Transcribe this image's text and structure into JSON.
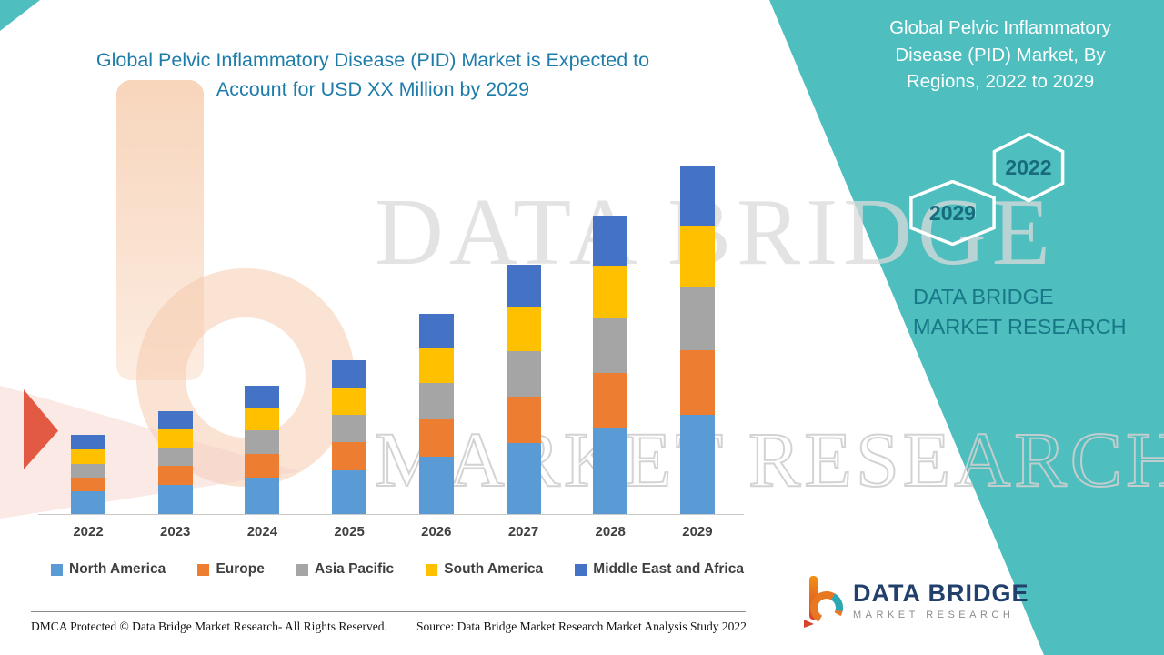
{
  "header": {
    "left_title": "Global Pelvic Inflammatory Disease (PID) Market is Expected to Account for USD XX Million by 2029"
  },
  "right_panel": {
    "title": "Global Pelvic Inflammatory Disease (PID) Market, By Regions, 2022 to 2029",
    "hexagons": [
      {
        "label": "2029"
      },
      {
        "label": "2022"
      }
    ],
    "brand": "DATA BRIDGE MARKET RESEARCH",
    "band_color": "#4EBEBF"
  },
  "watermark": {
    "line1": "DATA BRIDGE",
    "line2": "MARKET RESEARCH"
  },
  "footer": {
    "dmca": "DMCA Protected © Data Bridge Market Research- All Rights Reserved.",
    "source": "Source: Data Bridge Market Research Market Analysis Study 2022"
  },
  "logo": {
    "title": "DATA BRIDGE",
    "subtitle": "MARKET RESEARCH"
  },
  "chart_data": {
    "type": "bar",
    "stacked": true,
    "title": "Global Pelvic Inflammatory Disease (PID) Market, By Regions, 2022 to 2029",
    "categories": [
      "2022",
      "2023",
      "2024",
      "2025",
      "2026",
      "2027",
      "2028",
      "2029"
    ],
    "series": [
      {
        "name": "North America",
        "color": "#5B9BD5",
        "values": [
          2.5,
          3.2,
          4.0,
          4.8,
          6.3,
          7.8,
          9.4,
          10.9
        ]
      },
      {
        "name": "Europe",
        "color": "#ED7D31",
        "values": [
          1.5,
          2.1,
          2.6,
          3.1,
          4.1,
          5.1,
          6.1,
          7.1
        ]
      },
      {
        "name": "Asia Pacific",
        "color": "#A5A5A5",
        "values": [
          1.5,
          2.0,
          2.6,
          3.0,
          4.0,
          5.0,
          6.0,
          7.0
        ]
      },
      {
        "name": "South America",
        "color": "#FFC000",
        "values": [
          1.6,
          2.0,
          2.5,
          3.0,
          3.9,
          4.8,
          5.8,
          6.7
        ]
      },
      {
        "name": "Middle East and Africa",
        "color": "#4472C4",
        "values": [
          1.6,
          2.0,
          2.4,
          3.0,
          3.7,
          4.7,
          5.5,
          6.5
        ]
      }
    ],
    "xlabel": "",
    "ylabel": "",
    "y_axis_visible": false,
    "gridlines": false,
    "legend_position": "bottom",
    "ylim": [
      0,
      40
    ],
    "units": "relative index (source shows values as 'USD XX Million')",
    "value_note": "Segment values estimated from bar heights; actual figures are masked as XX in the source graphic."
  }
}
